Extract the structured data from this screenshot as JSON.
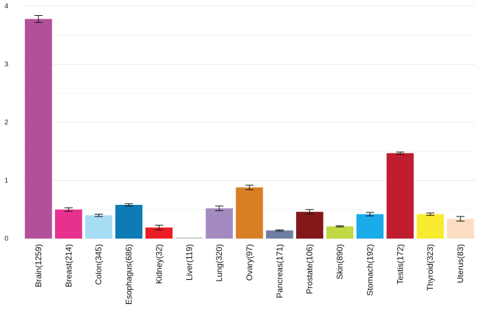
{
  "chart_data": {
    "type": "bar",
    "title": "",
    "xlabel": "",
    "ylabel": "",
    "ylim": [
      0,
      4
    ],
    "yticks": [
      "0",
      "1",
      "2",
      "3",
      "4"
    ],
    "grid": true,
    "legend": "none",
    "categories": [
      "Brain(1259)",
      "Breast(214)",
      "Colon(345)",
      "Esophagus(686)",
      "Kidney(32)",
      "Liver(119)",
      "Lung(320)",
      "Ovary(97)",
      "Pancreas(171)",
      "Prostate(106)",
      "Skin(890)",
      "Stomach(192)",
      "Testis(172)",
      "Thyroid(323)",
      "Uterus(83)"
    ],
    "values": [
      3.78,
      0.5,
      0.4,
      0.58,
      0.19,
      0.02,
      0.52,
      0.88,
      0.14,
      0.46,
      0.21,
      0.42,
      1.47,
      0.42,
      0.34
    ],
    "errors": [
      0.06,
      0.03,
      0.02,
      0.02,
      0.04,
      0.0,
      0.04,
      0.04,
      0.01,
      0.04,
      0.01,
      0.03,
      0.02,
      0.02,
      0.04
    ],
    "colors": [
      "#b3509b",
      "#e8318f",
      "#a7dcf5",
      "#0d7bb4",
      "#ec1c24",
      "#cbcbcb",
      "#a38bc1",
      "#d87f25",
      "#6f7fa3",
      "#84171a",
      "#c1d944",
      "#1aabe9",
      "#c01e2e",
      "#f8eb30",
      "#fbdec2"
    ]
  }
}
